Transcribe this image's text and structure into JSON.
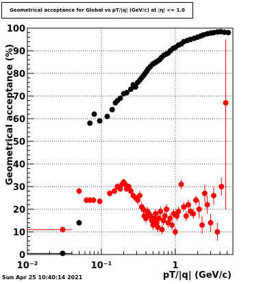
{
  "window": {
    "datestamp": "Sun Apr 25 10:40:14 2021"
  },
  "chart_data": {
    "type": "scatter",
    "title": "Geometrical acceptance for Global vs pT/|q| (GeV/c) at |η| <= 1.0",
    "xlabel": "pT/|q| (GeV/c)",
    "ylabel": "Geometrical acceptance (%)",
    "xscale": "log",
    "xlim": [
      0.01,
      6
    ],
    "ylim": [
      0,
      100
    ],
    "xticks": [
      {
        "value": 0.01,
        "label": "10⁻²"
      },
      {
        "value": 0.1,
        "label": "10⁻¹"
      },
      {
        "value": 1,
        "label": "1"
      }
    ],
    "yticks": [
      0,
      10,
      20,
      30,
      40,
      50,
      60,
      70,
      80,
      90,
      100
    ],
    "grid": true,
    "series": [
      {
        "color": "#000000",
        "points": [
          [
            0.03,
            0.5
          ],
          [
            0.05,
            14
          ],
          [
            0.07,
            58
          ],
          [
            0.08,
            62
          ],
          [
            0.095,
            59
          ],
          [
            0.12,
            61
          ],
          [
            0.14,
            64
          ],
          [
            0.155,
            67
          ],
          [
            0.165,
            68
          ],
          [
            0.18,
            69
          ],
          [
            0.2,
            71
          ],
          [
            0.22,
            71.5
          ],
          [
            0.25,
            73
          ],
          [
            0.27,
            75
          ],
          [
            0.29,
            74
          ],
          [
            0.31,
            76
          ],
          [
            0.33,
            77
          ],
          [
            0.35,
            78
          ],
          [
            0.37,
            79
          ],
          [
            0.39,
            80
          ],
          [
            0.41,
            81
          ],
          [
            0.43,
            82
          ],
          [
            0.46,
            83
          ],
          [
            0.49,
            84
          ],
          [
            0.52,
            84.5
          ],
          [
            0.55,
            85
          ],
          [
            0.58,
            85.5
          ],
          [
            0.61,
            86
          ],
          [
            0.65,
            87
          ],
          [
            0.7,
            88
          ],
          [
            0.75,
            88.5
          ],
          [
            0.8,
            89
          ],
          [
            0.86,
            90
          ],
          [
            0.93,
            91
          ],
          [
            1.0,
            91.5
          ],
          [
            1.1,
            92.5
          ],
          [
            1.2,
            93
          ],
          [
            1.3,
            94
          ],
          [
            1.45,
            94.5
          ],
          [
            1.6,
            95
          ],
          [
            1.8,
            95.5
          ],
          [
            2.0,
            96
          ],
          [
            2.2,
            96.5
          ],
          [
            2.4,
            97
          ],
          [
            2.7,
            97.5
          ],
          [
            3.0,
            97.8
          ],
          [
            3.3,
            98
          ],
          [
            3.7,
            98.3
          ],
          [
            4.1,
            98.4
          ],
          [
            4.6,
            98.2
          ],
          [
            5.2,
            98
          ]
        ]
      },
      {
        "color": "#ff0000",
        "points": [
          [
            0.03,
            11
          ],
          [
            0.05,
            28
          ],
          [
            0.063,
            24
          ],
          [
            0.07,
            24
          ],
          [
            0.078,
            24
          ],
          [
            0.095,
            23.5
          ],
          [
            0.13,
            27
          ],
          [
            0.15,
            28
          ],
          [
            0.165,
            30
          ],
          [
            0.18,
            29
          ],
          [
            0.19,
            31
          ],
          [
            0.2,
            32
          ],
          [
            0.21,
            31
          ],
          [
            0.22,
            29
          ],
          [
            0.235,
            30
          ],
          [
            0.25,
            28
          ],
          [
            0.27,
            26
          ],
          [
            0.29,
            25
          ],
          [
            0.31,
            24
          ],
          [
            0.33,
            26
          ],
          [
            0.35,
            21
          ],
          [
            0.37,
            20
          ],
          [
            0.38,
            17
          ],
          [
            0.4,
            16
          ],
          [
            0.42,
            19
          ],
          [
            0.44,
            18
          ],
          [
            0.46,
            17
          ],
          [
            0.48,
            15
          ],
          [
            0.5,
            13
          ],
          [
            0.52,
            16
          ],
          [
            0.54,
            18
          ],
          [
            0.56,
            14
          ],
          [
            0.58,
            12
          ],
          [
            0.6,
            16
          ],
          [
            0.63,
            19
          ],
          [
            0.66,
            11
          ],
          [
            0.69,
            15
          ],
          [
            0.72,
            17
          ],
          [
            0.76,
            20
          ],
          [
            0.8,
            14
          ],
          [
            0.85,
            16
          ],
          [
            0.9,
            13
          ],
          [
            0.95,
            18
          ],
          [
            1.0,
            10
          ],
          [
            1.05,
            17
          ],
          [
            1.1,
            19
          ],
          [
            1.2,
            31
          ],
          [
            1.3,
            21
          ],
          [
            1.4,
            17
          ],
          [
            1.5,
            22
          ],
          [
            1.6,
            19
          ],
          [
            1.75,
            18
          ],
          [
            1.9,
            24
          ],
          [
            2.1,
            20
          ],
          [
            2.3,
            13
          ],
          [
            2.5,
            27
          ],
          [
            2.7,
            22
          ],
          [
            3.0,
            14
          ],
          [
            3.3,
            26
          ],
          [
            3.7,
            10
          ],
          [
            4.2,
            30
          ],
          [
            4.8,
            67
          ]
        ]
      }
    ]
  }
}
